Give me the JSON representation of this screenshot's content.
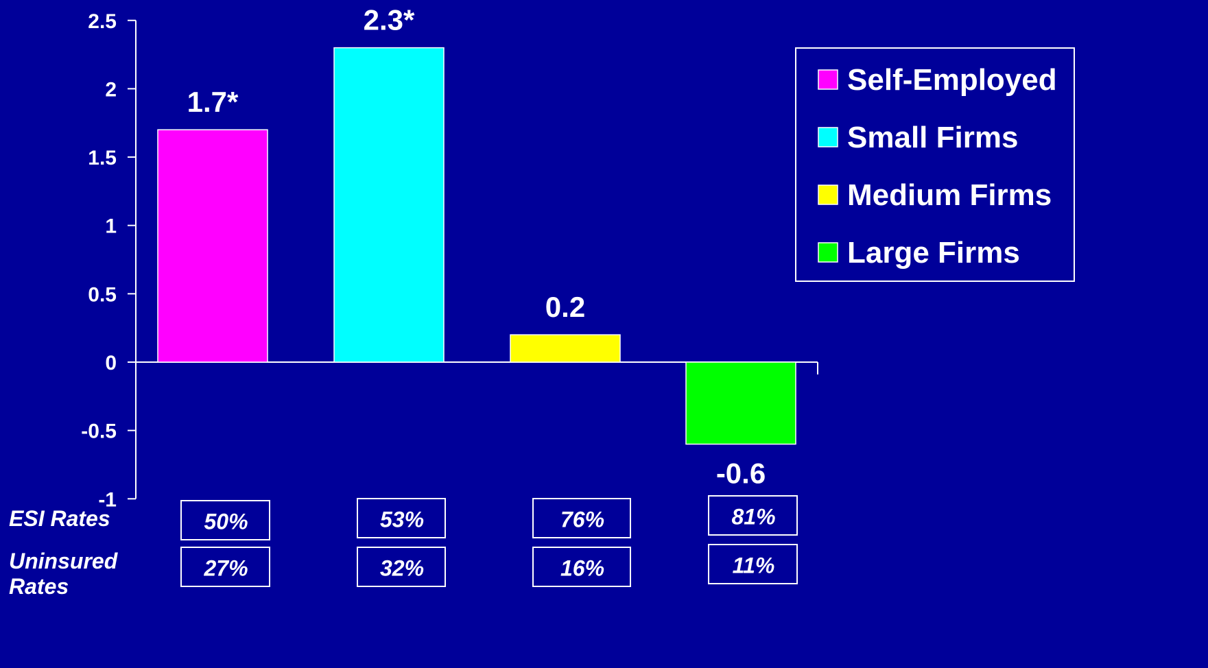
{
  "colors": {
    "background": "#000099",
    "axis": "#ffffff",
    "text": "#ffffff"
  },
  "chart_data": {
    "type": "bar",
    "title": "",
    "xlabel": "",
    "ylabel": "",
    "ylim": [
      -1,
      2.5
    ],
    "yticks": [
      2.5,
      2,
      1.5,
      1,
      0.5,
      0,
      -0.5,
      -1
    ],
    "ytick_labels": [
      "2.5",
      "2",
      "1.5",
      "1",
      "0.5",
      "0",
      "-0.5",
      "-1"
    ],
    "grid": false,
    "legend_position": "top-right",
    "categories": [
      "Self-Employed",
      "Small Firms",
      "Medium Firms",
      "Large Firms"
    ],
    "series": [
      {
        "name": "Self-Employed",
        "value": 1.7,
        "label": "1.7*",
        "color": "#ff00ff"
      },
      {
        "name": "Small Firms",
        "value": 2.3,
        "label": "2.3*",
        "color": "#00ffff"
      },
      {
        "name": "Medium Firms",
        "value": 0.2,
        "label": "0.2",
        "color": "#ffff00"
      },
      {
        "name": "Large Firms",
        "value": -0.6,
        "label": "-0.6",
        "color": "#00ff00"
      }
    ]
  },
  "rate_rows": [
    {
      "label": "ESI Rates",
      "values": [
        "50%",
        "53%",
        "76%",
        "81%"
      ]
    },
    {
      "label": "Uninsured Rates",
      "label_lines": [
        "Uninsured",
        "Rates"
      ],
      "values": [
        "27%",
        "32%",
        "16%",
        "11%"
      ]
    }
  ]
}
